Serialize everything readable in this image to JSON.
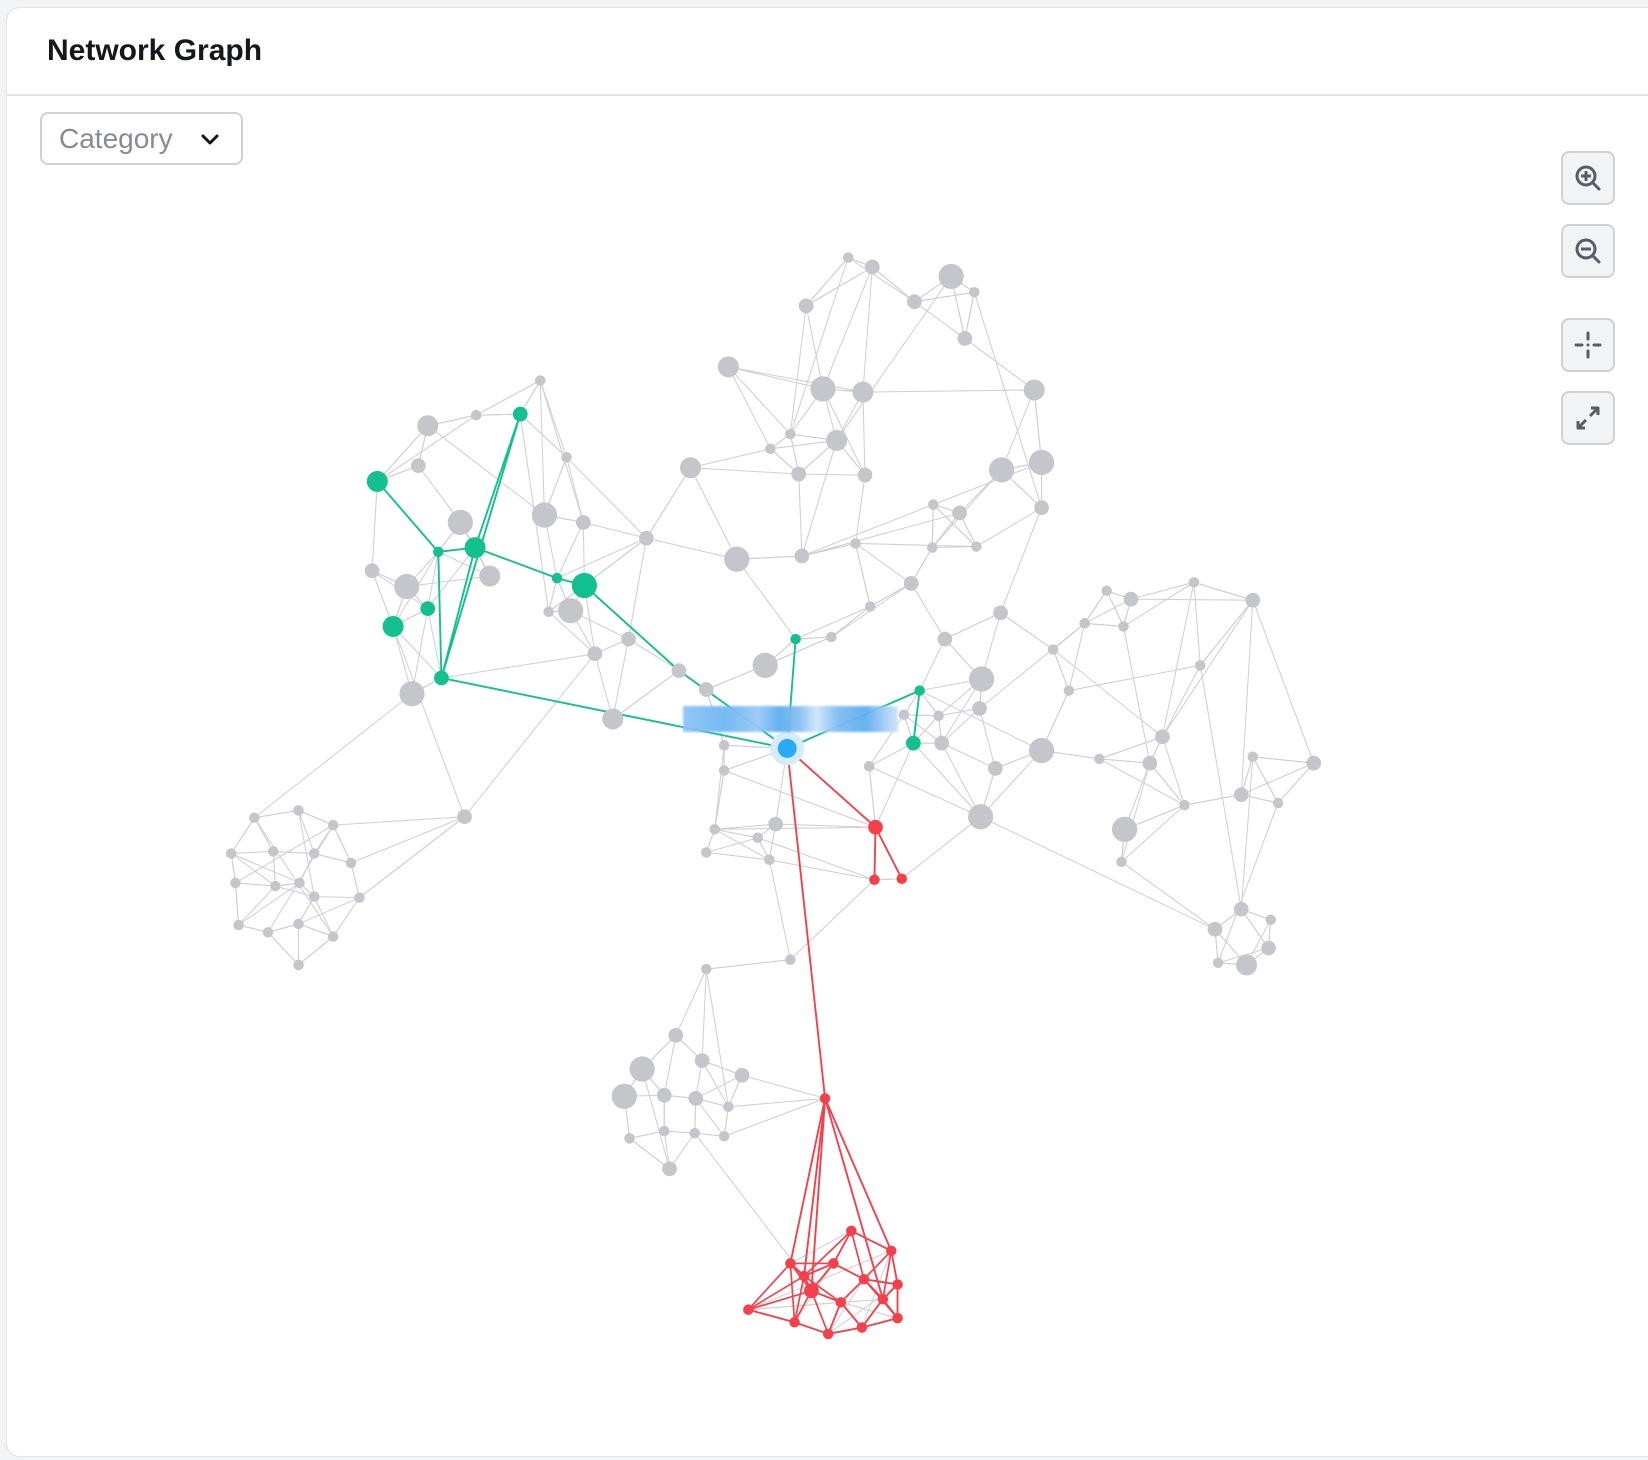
{
  "header": {
    "title": "Network Graph"
  },
  "filter": {
    "label": "Category",
    "icon": "chevron-down-icon"
  },
  "controls": [
    {
      "name": "zoom-in",
      "icon": "zoom-in-icon"
    },
    {
      "name": "zoom-out",
      "icon": "zoom-out-icon"
    },
    {
      "name": "center",
      "icon": "crosshair-icon"
    },
    {
      "name": "fullscreen",
      "icon": "expand-icon"
    }
  ],
  "colors": {
    "default_node": "#c4c6cc",
    "default_edge": "#cfd0d6",
    "highlight_green": "#13c08f",
    "highlight_red": "#f5404c",
    "selected_node": "#28aaf7"
  }
}
